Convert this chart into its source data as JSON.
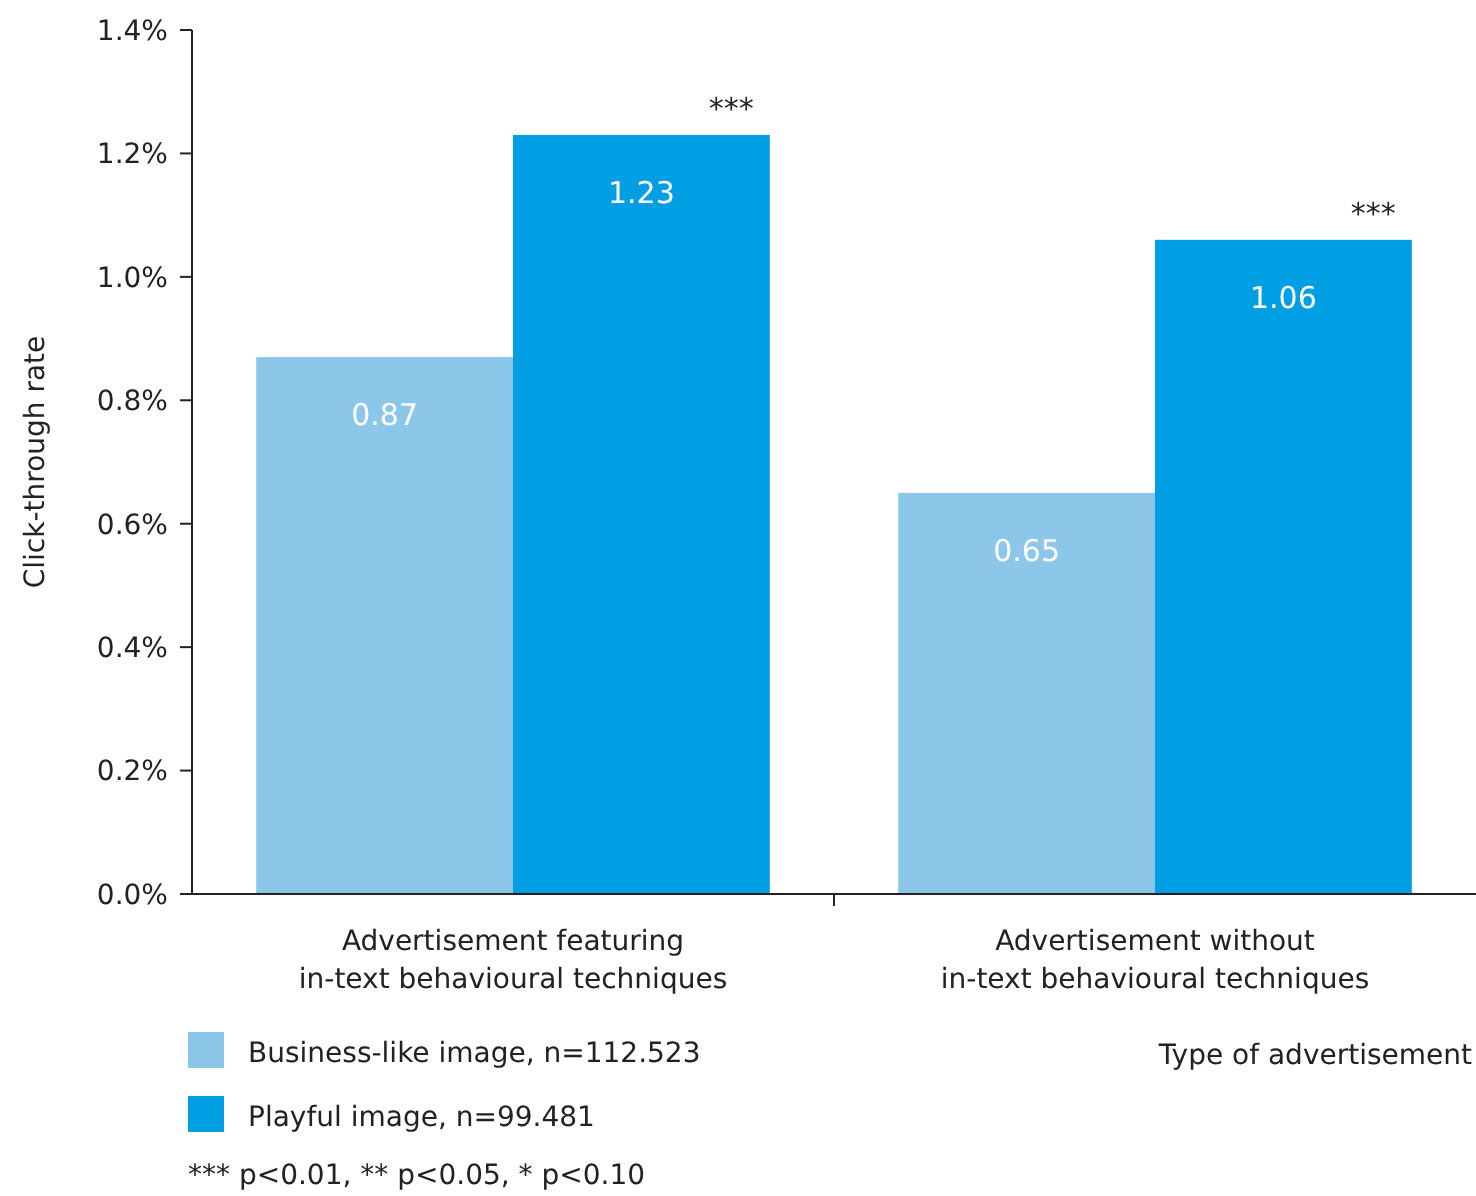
{
  "chart_data": {
    "type": "bar",
    "ylabel": "Click-through rate",
    "xlabel": "Type of advertisement",
    "categories": [
      "Advertisement featuring\nin-text behavioural techniques",
      "Advertisement without\nin-text behavioural techniques"
    ],
    "series": [
      {
        "name": "Business-like image, n=112.523",
        "color": "#8cc7e9",
        "values": [
          0.87,
          0.65
        ]
      },
      {
        "name": "Playful image, n=99.481",
        "color": "#009fe3",
        "values": [
          1.23,
          1.06
        ]
      }
    ],
    "data_labels": true,
    "ylim": [
      0,
      1.4
    ],
    "yticks": [
      {
        "value": 0,
        "label": "0.0%"
      },
      {
        "value": 0.2,
        "label": "0.2%"
      },
      {
        "value": 0.4,
        "label": "0.4%"
      },
      {
        "value": 0.6,
        "label": "0.6%"
      },
      {
        "value": 0.8,
        "label": "0.8%"
      },
      {
        "value": 1.0,
        "label": "1.0%"
      },
      {
        "value": 1.2,
        "label": "1.2%"
      },
      {
        "value": 1.4,
        "label": "1.4%"
      }
    ],
    "annotations": [
      "***",
      "***",
      "*** p<0.01, ** p<0.05, * p<0.10"
    ],
    "legend": "bottom left",
    "grid": false
  }
}
